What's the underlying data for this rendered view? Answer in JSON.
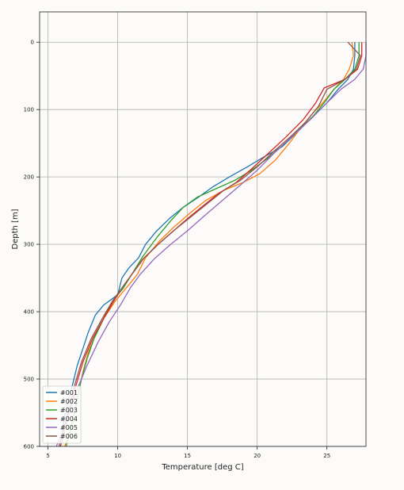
{
  "chart_data": {
    "type": "line",
    "xlabel": "Temperature [deg C]",
    "ylabel": "Depth [m]",
    "xlim": [
      4.4,
      27.8
    ],
    "ylim": [
      600,
      -45
    ],
    "y_inverted": true,
    "grid": true,
    "legend_position": "lower-left",
    "x_ticks": [
      5,
      10,
      15,
      20,
      25
    ],
    "y_ticks": [
      0,
      100,
      200,
      300,
      400,
      500,
      600
    ],
    "x_tick_labels": [
      "5",
      "10",
      "15",
      "20",
      "25"
    ],
    "y_tick_labels": [
      "0",
      "100",
      "200",
      "300",
      "400",
      "500",
      "600"
    ],
    "series": [
      {
        "name": "#001",
        "color": "#1f77b4",
        "points": [
          [
            27.0,
            0
          ],
          [
            27.0,
            20
          ],
          [
            26.9,
            40
          ],
          [
            26.5,
            55
          ],
          [
            25.8,
            70
          ],
          [
            25.0,
            90
          ],
          [
            24.0,
            110
          ],
          [
            22.8,
            135
          ],
          [
            21.8,
            155
          ],
          [
            20.5,
            170
          ],
          [
            19.3,
            185
          ],
          [
            18.0,
            200
          ],
          [
            16.8,
            215
          ],
          [
            15.8,
            230
          ],
          [
            14.7,
            245
          ],
          [
            13.7,
            262
          ],
          [
            12.8,
            280
          ],
          [
            12.0,
            300
          ],
          [
            11.5,
            320
          ],
          [
            10.8,
            335
          ],
          [
            10.3,
            350
          ],
          [
            10.0,
            375
          ],
          [
            9.0,
            390
          ],
          [
            8.4,
            405
          ],
          [
            7.9,
            430
          ],
          [
            7.5,
            455
          ],
          [
            7.1,
            480
          ],
          [
            6.8,
            505
          ],
          [
            6.5,
            530
          ],
          [
            6.2,
            555
          ],
          [
            6.0,
            580
          ],
          [
            5.8,
            600
          ]
        ]
      },
      {
        "name": "#002",
        "color": "#ff7f0e",
        "points": [
          [
            26.8,
            0
          ],
          [
            26.9,
            20
          ],
          [
            26.6,
            40
          ],
          [
            26.2,
            55
          ],
          [
            25.5,
            70
          ],
          [
            24.7,
            90
          ],
          [
            24.0,
            105
          ],
          [
            23.2,
            125
          ],
          [
            22.3,
            150
          ],
          [
            21.3,
            175
          ],
          [
            20.2,
            195
          ],
          [
            19.0,
            208
          ],
          [
            17.6,
            220
          ],
          [
            16.3,
            235
          ],
          [
            15.1,
            255
          ],
          [
            14.0,
            275
          ],
          [
            13.0,
            295
          ],
          [
            12.0,
            320
          ],
          [
            11.4,
            345
          ],
          [
            10.6,
            365
          ],
          [
            9.8,
            385
          ],
          [
            9.0,
            410
          ],
          [
            8.4,
            435
          ],
          [
            7.9,
            460
          ],
          [
            7.5,
            490
          ],
          [
            7.2,
            520
          ],
          [
            6.9,
            550
          ],
          [
            6.6,
            575
          ],
          [
            6.2,
            600
          ]
        ]
      },
      {
        "name": "#003",
        "color": "#2ca02c",
        "points": [
          [
            27.3,
            0
          ],
          [
            27.3,
            20
          ],
          [
            27.0,
            40
          ],
          [
            26.3,
            55
          ],
          [
            25.5,
            70
          ],
          [
            24.8,
            90
          ],
          [
            24.0,
            110
          ],
          [
            23.0,
            130
          ],
          [
            22.0,
            150
          ],
          [
            20.9,
            170
          ],
          [
            19.6,
            190
          ],
          [
            18.4,
            205
          ],
          [
            17.0,
            218
          ],
          [
            15.7,
            230
          ],
          [
            14.7,
            245
          ],
          [
            13.8,
            265
          ],
          [
            12.8,
            290
          ],
          [
            11.8,
            318
          ],
          [
            11.0,
            345
          ],
          [
            10.4,
            365
          ],
          [
            9.6,
            385
          ],
          [
            9.0,
            410
          ],
          [
            8.3,
            440
          ],
          [
            7.8,
            470
          ],
          [
            7.4,
            500
          ],
          [
            7.1,
            530
          ],
          [
            6.8,
            560
          ],
          [
            6.5,
            585
          ],
          [
            6.3,
            600
          ]
        ]
      },
      {
        "name": "#004",
        "color": "#d62728",
        "points": [
          [
            27.5,
            0
          ],
          [
            27.5,
            20
          ],
          [
            27.2,
            40
          ],
          [
            26.3,
            55
          ],
          [
            24.8,
            68
          ],
          [
            24.2,
            90
          ],
          [
            23.3,
            115
          ],
          [
            22.1,
            140
          ],
          [
            20.8,
            165
          ],
          [
            19.6,
            188
          ],
          [
            18.5,
            208
          ],
          [
            17.2,
            225
          ],
          [
            16.0,
            245
          ],
          [
            15.0,
            262
          ],
          [
            13.9,
            282
          ],
          [
            12.9,
            300
          ],
          [
            11.8,
            322
          ],
          [
            11.0,
            345
          ],
          [
            10.3,
            365
          ],
          [
            9.7,
            385
          ],
          [
            9.0,
            410
          ],
          [
            8.2,
            440
          ],
          [
            7.5,
            475
          ],
          [
            7.0,
            510
          ],
          [
            6.6,
            545
          ],
          [
            6.2,
            575
          ],
          [
            5.9,
            600
          ]
        ]
      },
      {
        "name": "#005",
        "color": "#9467bd",
        "points": [
          [
            27.8,
            0
          ],
          [
            27.8,
            20
          ],
          [
            27.6,
            40
          ],
          [
            27.0,
            55
          ],
          [
            26.0,
            70
          ],
          [
            25.0,
            90
          ],
          [
            23.8,
            115
          ],
          [
            22.5,
            140
          ],
          [
            21.2,
            165
          ],
          [
            20.0,
            190
          ],
          [
            18.8,
            212
          ],
          [
            17.5,
            235
          ],
          [
            16.2,
            258
          ],
          [
            15.0,
            280
          ],
          [
            13.8,
            300
          ],
          [
            12.6,
            322
          ],
          [
            11.6,
            345
          ],
          [
            10.9,
            365
          ],
          [
            10.2,
            390
          ],
          [
            9.4,
            415
          ],
          [
            8.6,
            445
          ],
          [
            7.8,
            480
          ],
          [
            7.1,
            515
          ],
          [
            6.5,
            550
          ],
          [
            6.0,
            580
          ],
          [
            5.6,
            600
          ]
        ]
      },
      {
        "name": "#006",
        "color": "#8c564b",
        "points": [
          [
            26.5,
            0
          ],
          [
            27.4,
            20
          ],
          [
            27.1,
            40
          ],
          [
            26.3,
            55
          ],
          [
            25.0,
            70
          ],
          [
            24.4,
            95
          ],
          [
            23.5,
            118
          ],
          [
            22.4,
            140
          ],
          [
            21.2,
            162
          ],
          [
            20.0,
            185
          ],
          [
            18.8,
            205
          ],
          [
            17.6,
            220
          ],
          [
            16.4,
            240
          ],
          [
            15.2,
            260
          ],
          [
            14.0,
            280
          ],
          [
            12.9,
            300
          ],
          [
            11.9,
            320
          ],
          [
            11.0,
            345
          ],
          [
            10.3,
            365
          ],
          [
            9.6,
            385
          ],
          [
            8.9,
            410
          ],
          [
            8.1,
            440
          ],
          [
            7.4,
            475
          ],
          [
            6.9,
            510
          ],
          [
            6.5,
            545
          ],
          [
            6.1,
            575
          ],
          [
            5.8,
            600
          ]
        ]
      }
    ]
  }
}
